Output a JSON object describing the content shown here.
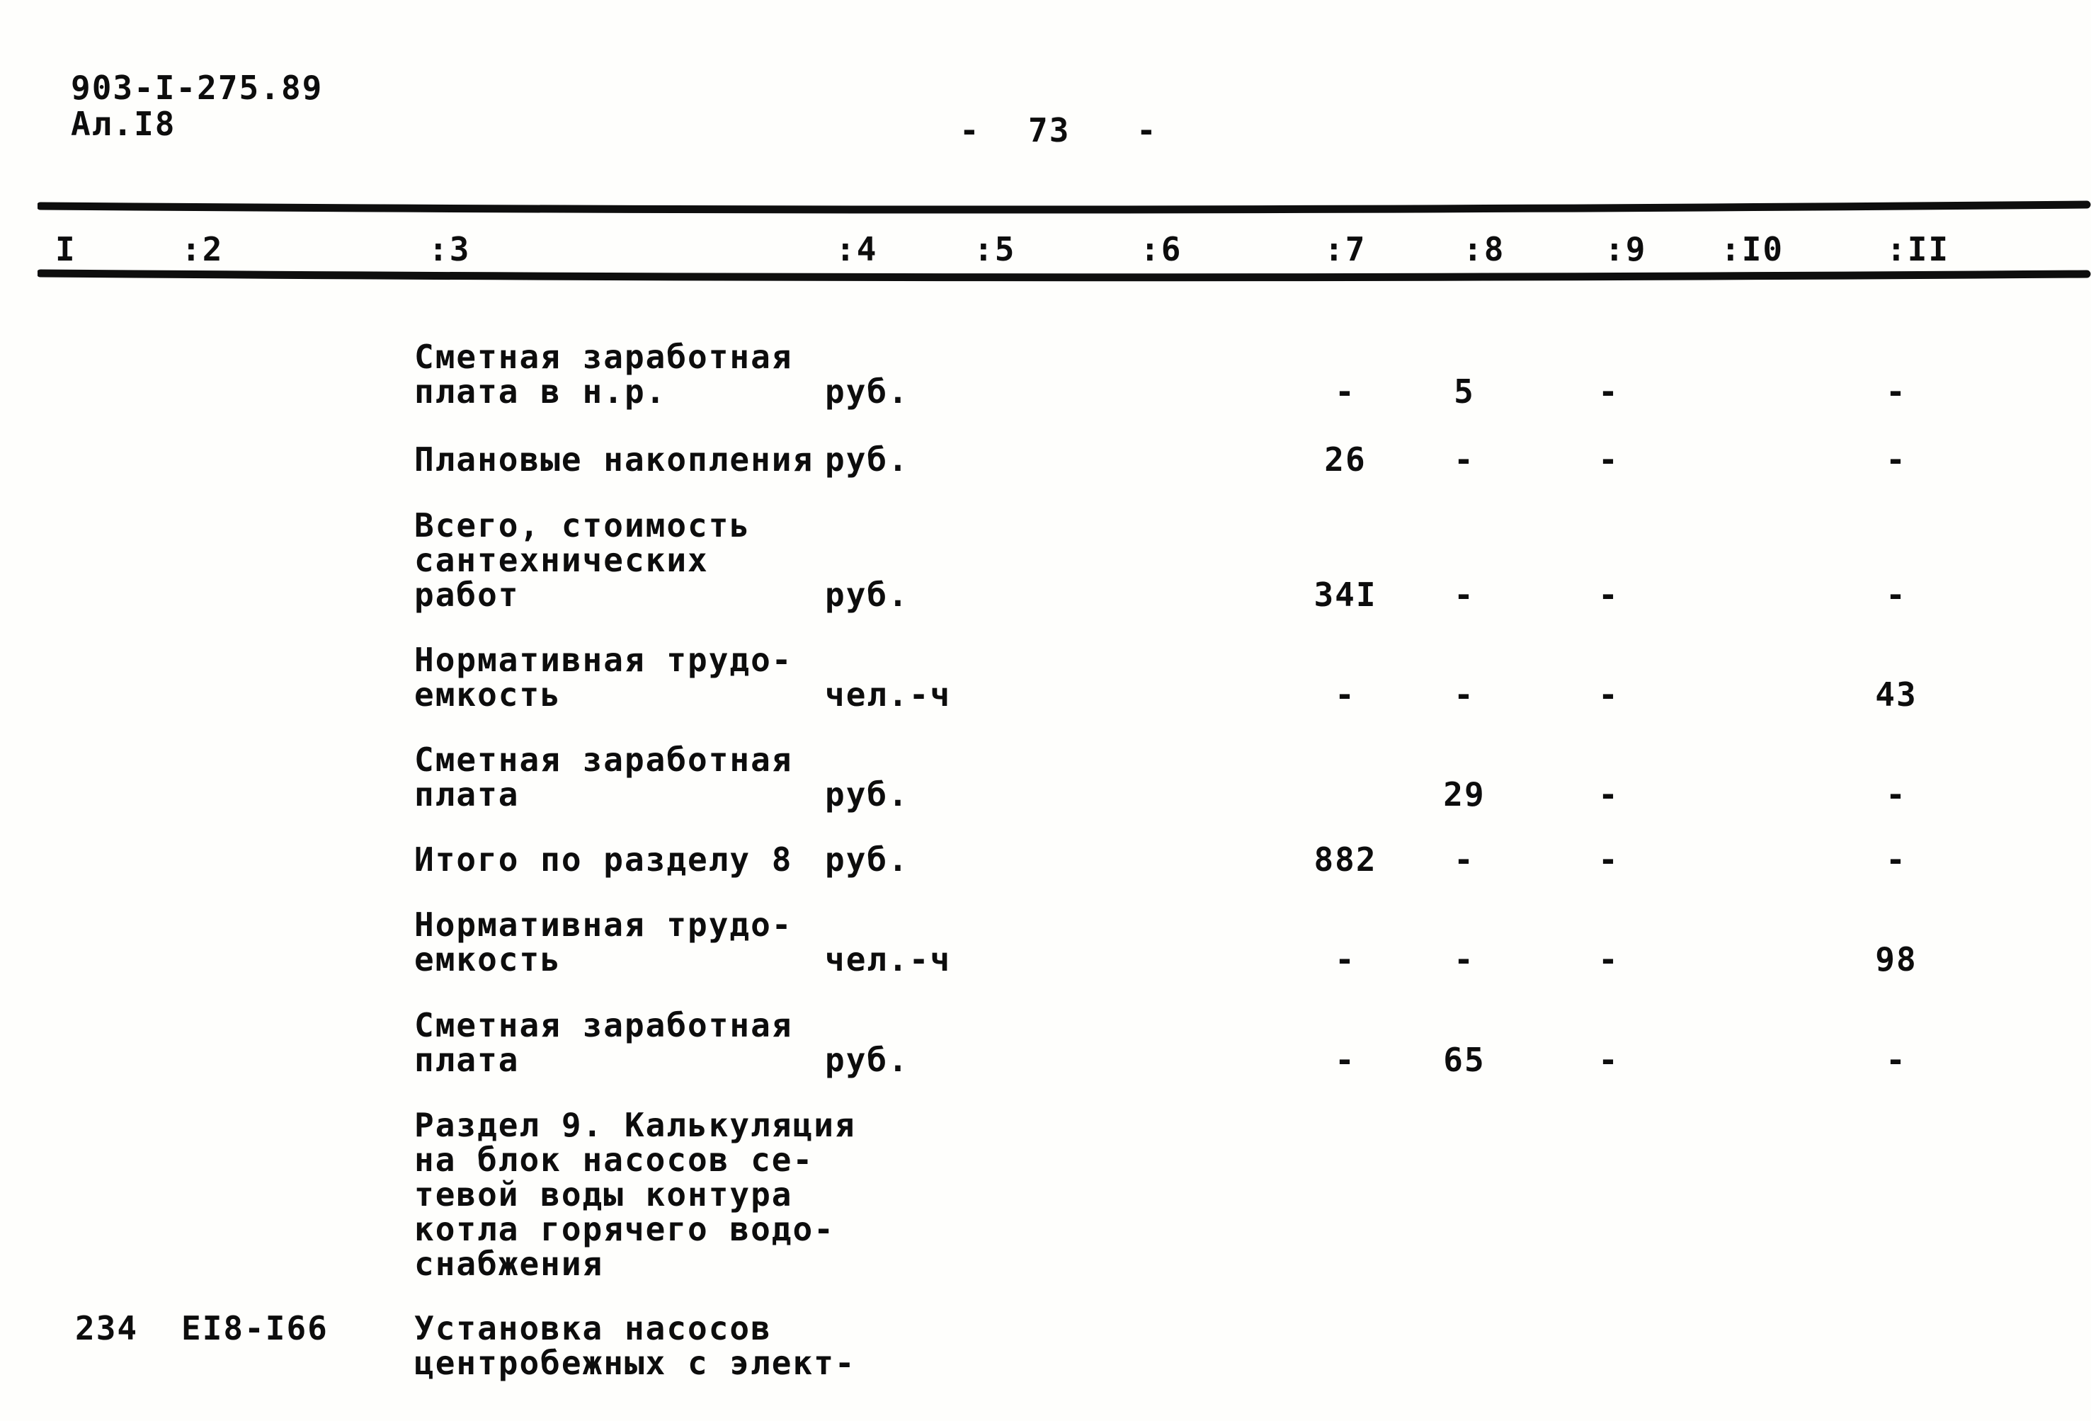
{
  "page_header": {
    "doc_code": "903-I-275.89",
    "sheet": "Ал.I8",
    "page_number_left_dash": "-",
    "page_number": "73",
    "page_number_right_dash": "-"
  },
  "table": {
    "header_cols": [
      "I",
      ":2",
      ":3",
      ":4",
      ":5",
      ":6",
      ":7",
      ":8",
      ":9",
      ":I0",
      ":II"
    ],
    "rows": [
      {
        "name_lines": [
          "Сметная заработная",
          "плата в н.р."
        ],
        "unit": "руб.",
        "c7": "-",
        "c8": "5",
        "c9": "-",
        "c10": "",
        "c11": "-"
      },
      {
        "name_lines": [
          "Плановые накопления"
        ],
        "unit": "руб.",
        "c7": "26",
        "c8": "-",
        "c9": "-",
        "c10": "",
        "c11": "-"
      },
      {
        "name_lines": [
          "Всего, стоимость",
          "сантехнических",
          "работ"
        ],
        "unit": "руб.",
        "c7": "34I",
        "c8": "-",
        "c9": "-",
        "c10": "",
        "c11": "-"
      },
      {
        "name_lines": [
          "Нормативная трудо-",
          "емкость"
        ],
        "unit": "чел.-ч",
        "c7": "-",
        "c8": "-",
        "c9": "-",
        "c10": "",
        "c11": "43"
      },
      {
        "name_lines": [
          "Сметная заработная",
          "плата"
        ],
        "unit": "руб.",
        "c7": "",
        "c8": "29",
        "c9": "-",
        "c10": "",
        "c11": "-"
      },
      {
        "name_lines": [
          "Итого по разделу 8"
        ],
        "unit": "руб.",
        "c7": "882",
        "c8": "-",
        "c9": "-",
        "c10": "",
        "c11": "-"
      },
      {
        "name_lines": [
          "Нормативная трудо-",
          "емкость"
        ],
        "unit": "чел.-ч",
        "c7": "-",
        "c8": "-",
        "c9": "-",
        "c10": "",
        "c11": "98"
      },
      {
        "name_lines": [
          "Сметная заработная",
          "плата"
        ],
        "unit": "руб.",
        "c7": "-",
        "c8": "65",
        "c9": "-",
        "c10": "",
        "c11": "-"
      }
    ],
    "section_heading_lines": [
      "Раздел 9. Калькуляция",
      "на блок насосов се-",
      "тевой воды контура",
      "котла горячего водо-",
      "снабжения"
    ],
    "next_item": {
      "number": "234",
      "code": "ЕI8-I66",
      "name_lines": [
        "Установка насосов",
        "центробежных с элект-"
      ]
    }
  }
}
